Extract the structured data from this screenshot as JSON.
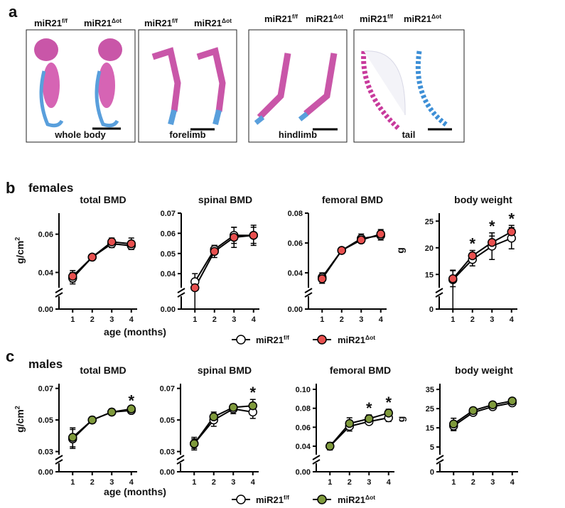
{
  "panel_a": {
    "label": "a",
    "genotypes": [
      {
        "base": "miR21",
        "sup": "f/f"
      },
      {
        "base": "miR21",
        "sup": "Δot"
      }
    ],
    "images": [
      {
        "caption": "whole body"
      },
      {
        "caption": "forelimb"
      },
      {
        "caption": "hindlimb"
      },
      {
        "caption": "tail"
      }
    ]
  },
  "panel_b": {
    "label": "b",
    "group": "females",
    "x_label": "age (months)"
  },
  "panel_c": {
    "label": "c",
    "group": "males",
    "x_label": "age (months)"
  },
  "chart_data": [
    {
      "type": "line",
      "title": "total BMD",
      "y_label": {
        "base": "g/cm",
        "sup": "2"
      },
      "axis_break": true,
      "x": [
        1,
        2,
        3,
        4
      ],
      "xlim": [
        0.3,
        4.3
      ],
      "xticks": [
        1,
        2,
        3,
        4
      ],
      "ylim": [
        0.032,
        0.071
      ],
      "yticks": [
        {
          "value": 0,
          "label": "0.00"
        },
        0.04,
        0.06
      ],
      "series": [
        {
          "name": {
            "base": "miR21",
            "sup": "f/f"
          },
          "color": "#ffffff",
          "values": [
            0.037,
            0.048,
            0.055,
            0.054
          ],
          "errors": [
            0.003,
            0.001,
            0.002,
            0.002
          ]
        },
        {
          "name": {
            "base": "miR21",
            "sup": "Δot"
          },
          "color": "#e8504f",
          "values": [
            0.038,
            0.048,
            0.056,
            0.055
          ],
          "errors": [
            0.003,
            0.001,
            0.002,
            0.003
          ]
        }
      ]
    },
    {
      "type": "line",
      "title": "spinal BMD",
      "axis_break": true,
      "x": [
        1,
        2,
        3,
        4
      ],
      "xlim": [
        0.3,
        4.3
      ],
      "xticks": [
        1,
        2,
        3,
        4
      ],
      "ylim": [
        0.033,
        0.07
      ],
      "yticks": [
        {
          "value": 0,
          "label": "0.00"
        },
        0.04,
        0.05,
        0.06,
        0.07
      ],
      "series": [
        {
          "name": {
            "base": "miR21",
            "sup": "f/f"
          },
          "color": "#ffffff",
          "values": [
            0.036,
            0.052,
            0.059,
            0.059
          ],
          "errors": [
            0.004,
            0.002,
            0.004,
            0.005
          ]
        },
        {
          "name": {
            "base": "miR21",
            "sup": "Δot"
          },
          "color": "#e8504f",
          "values": [
            0.033,
            0.051,
            0.058,
            0.059
          ],
          "errors": [
            0.003,
            0.003,
            0.005,
            0.004
          ]
        }
      ]
    },
    {
      "type": "line",
      "title": "femoral BMD",
      "axis_break": true,
      "x": [
        1,
        2,
        3,
        4
      ],
      "xlim": [
        0.3,
        4.3
      ],
      "xticks": [
        1,
        2,
        3,
        4
      ],
      "ylim": [
        0.03,
        0.08
      ],
      "yticks": [
        {
          "value": 0,
          "label": "0.00"
        },
        0.04,
        0.06,
        0.08
      ],
      "series": [
        {
          "name": {
            "base": "miR21",
            "sup": "f/f"
          },
          "color": "#ffffff",
          "values": [
            0.037,
            0.055,
            0.063,
            0.065
          ],
          "errors": [
            0.003,
            0.002,
            0.003,
            0.003
          ]
        },
        {
          "name": {
            "base": "miR21",
            "sup": "Δot"
          },
          "color": "#e8504f",
          "values": [
            0.036,
            0.055,
            0.062,
            0.066
          ],
          "errors": [
            0.003,
            0.002,
            0.002,
            0.003
          ]
        }
      ]
    },
    {
      "type": "line",
      "title": "body weight",
      "y_label": {
        "base": "g"
      },
      "axis_break": true,
      "x": [
        1,
        2,
        3,
        4
      ],
      "xlim": [
        0.3,
        4.3
      ],
      "xticks": [
        1,
        2,
        3,
        4
      ],
      "ylim": [
        12.5,
        26.5
      ],
      "yticks": [
        0,
        15,
        20,
        25
      ],
      "annotations": [
        {
          "x": 2,
          "text": "*"
        },
        {
          "x": 3,
          "text": "*"
        },
        {
          "x": 4,
          "text": "*"
        }
      ],
      "series": [
        {
          "name": {
            "base": "miR21",
            "sup": "f/f"
          },
          "color": "#ffffff",
          "values": [
            14,
            17.8,
            20.3,
            21.8
          ],
          "errors": [
            1.8,
            1.2,
            2.5,
            2.0
          ]
        },
        {
          "name": {
            "base": "miR21",
            "sup": "Δot"
          },
          "color": "#e8504f",
          "values": [
            14.2,
            18.5,
            21,
            23
          ],
          "errors": [
            1.5,
            1.0,
            1.2,
            1.2
          ]
        }
      ]
    },
    {
      "type": "line",
      "title": "total BMD",
      "y_label": {
        "base": "g/cm",
        "sup": "2"
      },
      "axis_break": true,
      "x": [
        1,
        2,
        3,
        4
      ],
      "xlim": [
        0.3,
        4.3
      ],
      "xticks": [
        1,
        2,
        3,
        4
      ],
      "ylim": [
        0.028,
        0.073
      ],
      "yticks": [
        {
          "value": 0,
          "label": "0.00"
        },
        0.03,
        0.05,
        0.07
      ],
      "annotations": [
        {
          "x": 4,
          "text": "*"
        }
      ],
      "series": [
        {
          "name": {
            "base": "miR21",
            "sup": "f/f"
          },
          "color": "#ffffff",
          "values": [
            0.038,
            0.05,
            0.055,
            0.056
          ],
          "errors": [
            0.006,
            0.002,
            0.002,
            0.002
          ]
        },
        {
          "name": {
            "base": "miR21",
            "sup": "Δot"
          },
          "color": "#7f9a3c",
          "values": [
            0.039,
            0.05,
            0.055,
            0.057
          ],
          "errors": [
            0.006,
            0.002,
            0.001,
            0.001
          ]
        }
      ]
    },
    {
      "type": "line",
      "title": "spinal BMD",
      "axis_break": true,
      "x": [
        1,
        2,
        3,
        4
      ],
      "xlim": [
        0.3,
        4.3
      ],
      "xticks": [
        1,
        2,
        3,
        4
      ],
      "ylim": [
        0.028,
        0.073
      ],
      "yticks": [
        {
          "value": 0,
          "label": "0.00"
        },
        0.03,
        0.05,
        0.07
      ],
      "annotations": [
        {
          "x": 4,
          "text": "*"
        }
      ],
      "series": [
        {
          "name": {
            "base": "miR21",
            "sup": "f/f"
          },
          "color": "#ffffff",
          "values": [
            0.035,
            0.05,
            0.057,
            0.055
          ],
          "errors": [
            0.004,
            0.004,
            0.003,
            0.004
          ]
        },
        {
          "name": {
            "base": "miR21",
            "sup": "Δot"
          },
          "color": "#7f9a3c",
          "values": [
            0.035,
            0.052,
            0.058,
            0.059
          ],
          "errors": [
            0.003,
            0.003,
            0.002,
            0.004
          ]
        }
      ]
    },
    {
      "type": "line",
      "title": "femoral BMD",
      "axis_break": true,
      "x": [
        1,
        2,
        3,
        4
      ],
      "xlim": [
        0.3,
        4.3
      ],
      "xticks": [
        1,
        2,
        3,
        4
      ],
      "ylim": [
        0.031,
        0.106
      ],
      "yticks": [
        {
          "value": 0,
          "label": "0.00"
        },
        0.04,
        0.06,
        0.08,
        {
          "value": 0.1,
          "label": "0.10"
        }
      ],
      "annotations": [
        {
          "x": 3,
          "text": "*"
        },
        {
          "x": 4,
          "text": "*"
        }
      ],
      "series": [
        {
          "name": {
            "base": "miR21",
            "sup": "f/f"
          },
          "color": "#ffffff",
          "values": [
            0.04,
            0.061,
            0.066,
            0.07
          ],
          "errors": [
            0.004,
            0.005,
            0.003,
            0.004
          ]
        },
        {
          "name": {
            "base": "miR21",
            "sup": "Δot"
          },
          "color": "#7f9a3c",
          "values": [
            0.04,
            0.064,
            0.069,
            0.075
          ],
          "errors": [
            0.003,
            0.006,
            0.004,
            0.004
          ]
        }
      ]
    },
    {
      "type": "line",
      "title": "body weight",
      "y_label": {
        "base": "g"
      },
      "axis_break": true,
      "x": [
        1,
        2,
        3,
        4
      ],
      "xlim": [
        0.3,
        4.3
      ],
      "xticks": [
        1,
        2,
        3,
        4
      ],
      "ylim": [
        1,
        38
      ],
      "yticks": [
        0,
        5,
        15,
        25,
        35
      ],
      "series": [
        {
          "name": {
            "base": "miR21",
            "sup": "f/f"
          },
          "color": "#ffffff",
          "values": [
            16,
            23,
            26,
            28
          ],
          "errors": [
            2.5,
            1.5,
            1.5,
            1.0
          ]
        },
        {
          "name": {
            "base": "miR21",
            "sup": "Δot"
          },
          "color": "#7f9a3c",
          "values": [
            17,
            24,
            27,
            29
          ],
          "errors": [
            3,
            1.5,
            1.5,
            1.0
          ]
        }
      ]
    }
  ]
}
